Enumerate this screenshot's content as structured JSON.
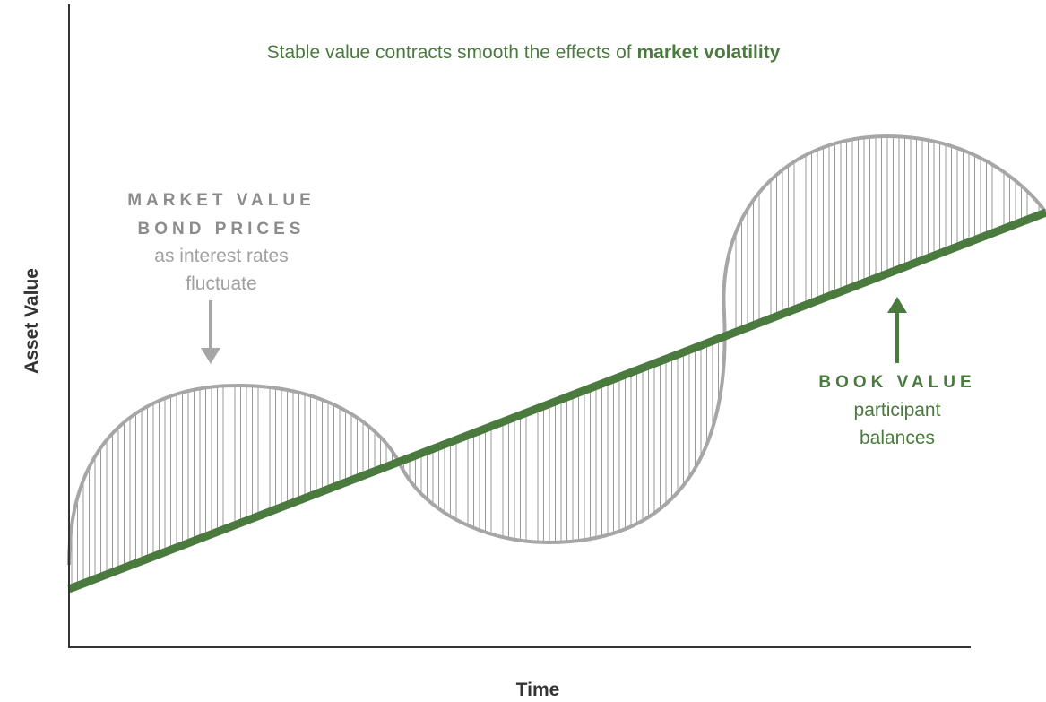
{
  "title": {
    "text": "Stable value contracts smooth the effects of",
    "emphasis": "market volatility"
  },
  "axes": {
    "y": "Asset Value",
    "x": "Time"
  },
  "market_value": {
    "heading": "MARKET VALUE",
    "subheading": "BOND PRICES",
    "lines": [
      "as interest rates",
      "fluctuate"
    ]
  },
  "book_value": {
    "heading": "BOOK VALUE",
    "lines": [
      "participant",
      "balances"
    ]
  }
}
